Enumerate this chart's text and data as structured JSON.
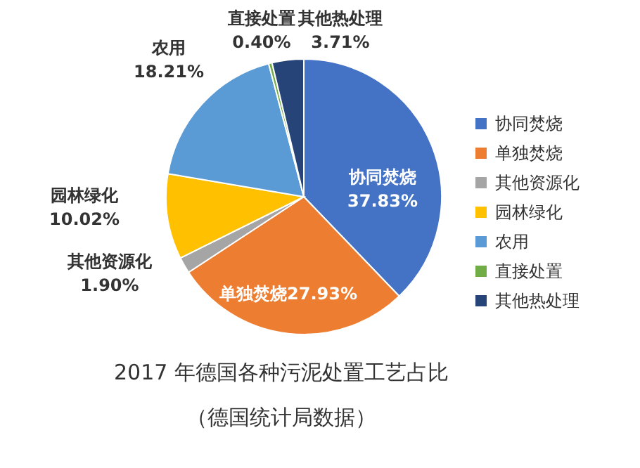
{
  "chart_data": {
    "type": "pie",
    "title": "2017 年德国各种污泥处置工艺占比",
    "subtitle": "（德国统计局数据）",
    "categories": [
      "协同焚烧",
      "单独焚烧",
      "其他资源化",
      "园林绿化",
      "农用",
      "直接处置",
      "其他热处理"
    ],
    "values": [
      37.83,
      27.93,
      1.9,
      10.02,
      18.21,
      0.4,
      3.71
    ],
    "colors": [
      "#4472c4",
      "#ed7d31",
      "#a5a5a5",
      "#ffc000",
      "#5b9bd5",
      "#70ad47",
      "#264478"
    ],
    "value_labels": [
      "37.83%",
      "27.93%",
      "1.90%",
      "10.02%",
      "18.21%",
      "0.40%",
      "3.71%"
    ],
    "legend": "right"
  }
}
